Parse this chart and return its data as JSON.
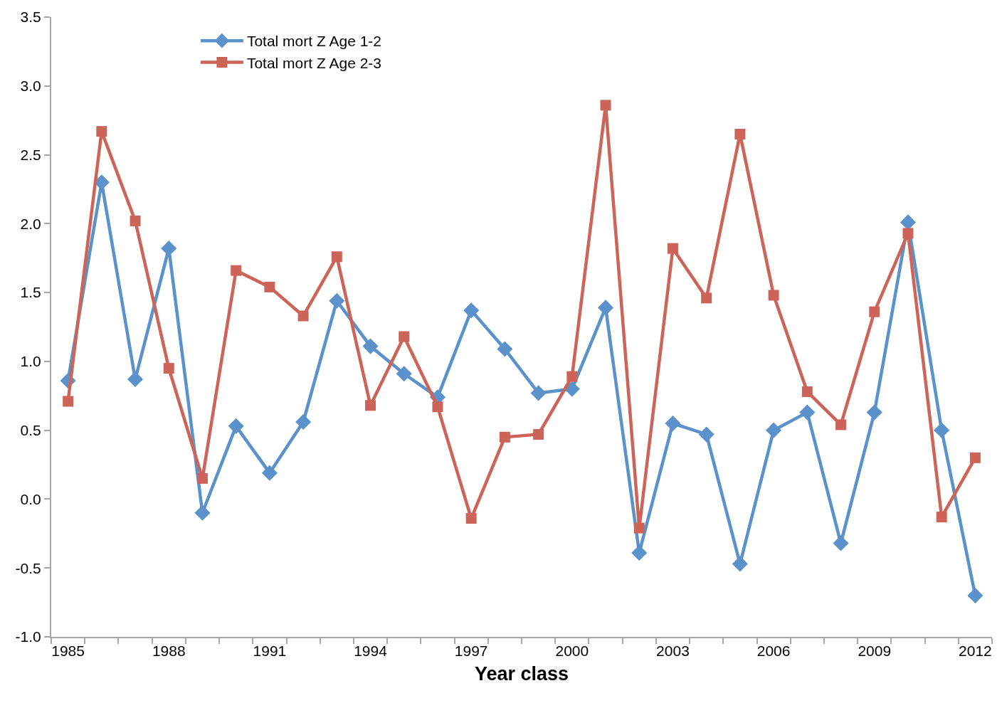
{
  "chart_data": {
    "type": "line",
    "xlabel": "Year class",
    "categories": [
      "1985",
      null,
      null,
      "1988",
      null,
      null,
      "1991",
      null,
      null,
      "1994",
      null,
      null,
      "1997",
      null,
      null,
      "2000",
      null,
      null,
      "2003",
      null,
      null,
      "2006",
      null,
      null,
      "2009",
      null,
      null,
      "2012"
    ],
    "series": [
      {
        "name": "Total mort Z Age 1-2",
        "color": "#5b92cb",
        "marker": "diamond",
        "values": [
          0.86,
          2.3,
          0.87,
          1.82,
          -0.1,
          0.53,
          0.19,
          0.56,
          1.44,
          1.11,
          0.91,
          0.74,
          1.37,
          1.09,
          0.77,
          0.8,
          1.39,
          -0.39,
          0.55,
          0.47,
          -0.47,
          0.5,
          0.63,
          -0.32,
          0.63,
          2.01,
          0.5,
          -0.7
        ]
      },
      {
        "name": "Total mort Z Age 2-3",
        "color": "#cd6459",
        "marker": "square",
        "values": [
          0.71,
          2.67,
          2.02,
          0.95,
          0.15,
          1.66,
          1.54,
          1.33,
          1.76,
          0.68,
          1.18,
          0.67,
          -0.14,
          0.45,
          0.47,
          0.89,
          2.86,
          -0.21,
          1.82,
          1.46,
          2.65,
          1.48,
          0.78,
          0.54,
          1.36,
          1.93,
          -0.13,
          0.3
        ]
      }
    ],
    "ylim": [
      -1.0,
      3.5
    ],
    "yticks": [
      {
        "value": -1,
        "label": "-1.0"
      },
      -0.5,
      {
        "value": 0,
        "label": "0.0"
      },
      0.5,
      {
        "value": 1,
        "label": "1.0"
      },
      1.5,
      {
        "value": 2,
        "label": "2.0"
      },
      2.5,
      {
        "value": 3,
        "label": "3.0"
      },
      3.5
    ],
    "grid": false,
    "legend": "top left",
    "line_style": "solid"
  }
}
